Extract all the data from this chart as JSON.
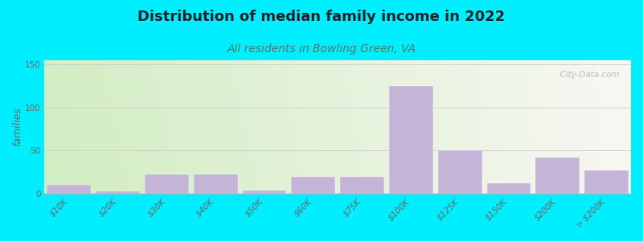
{
  "title": "Distribution of median family income in 2022",
  "subtitle": "All residents in Bowling Green, VA",
  "categories": [
    "$10K",
    "$20K",
    "$30K",
    "$40K",
    "$50K",
    "$60K",
    "$75K",
    "$100K",
    "$125K",
    "$150K",
    "$200K",
    "> $200K"
  ],
  "values": [
    10,
    3,
    22,
    22,
    4,
    20,
    20,
    125,
    50,
    12,
    42,
    27
  ],
  "bar_color": "#c4b4d8",
  "bar_edgecolor": "#c4b4d8",
  "title_fontsize": 13,
  "subtitle_fontsize": 10,
  "ylabel": "families",
  "ylabel_fontsize": 9,
  "tick_fontsize": 7.5,
  "ylim": [
    0,
    155
  ],
  "yticks": [
    0,
    50,
    100,
    150
  ],
  "background_outer": "#00eeff",
  "bg_color_left": "#d0ecc0",
  "bg_color_right": "#f5f5f0",
  "watermark": "  City-Data.com",
  "subtitle_color": "#557766",
  "title_color": "#222222"
}
